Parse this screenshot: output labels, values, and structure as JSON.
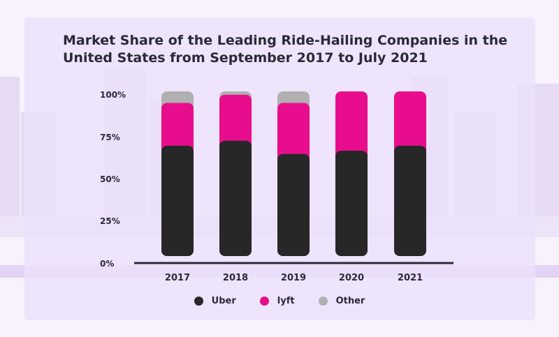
{
  "title": "Market Share of the Leading Ride-Hailing Companies in the United States from September 2017 to July 2021",
  "colors": {
    "Uber": "#272727",
    "lyft": "#e80d8c",
    "Other": "#b0b0b0",
    "card": "#ece0fb"
  },
  "chart_data": {
    "type": "bar",
    "stacked": true,
    "title": "Market Share of the Leading Ride-Hailing Companies in the United States from September 2017 to July 2021",
    "categories": [
      "2017",
      "2018",
      "2019",
      "2020",
      "2021"
    ],
    "series": [
      {
        "name": "Uber",
        "values": [
          67,
          70,
          62,
          64,
          67
        ]
      },
      {
        "name": "lyft",
        "values": [
          26,
          28,
          31,
          36,
          33
        ]
      },
      {
        "name": "Other",
        "values": [
          7,
          2,
          7,
          0,
          0
        ]
      }
    ],
    "ylim": [
      0,
      100
    ],
    "yticks": [
      "0%",
      "25%",
      "50%",
      "75%",
      "100%"
    ],
    "grid": false,
    "legend": "bottom-center"
  }
}
